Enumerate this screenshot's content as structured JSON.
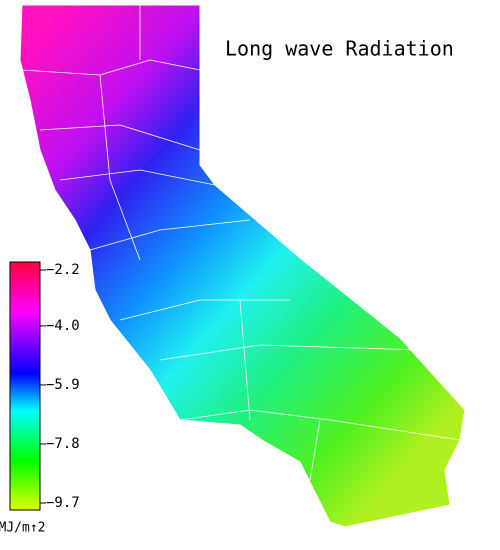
{
  "map": {
    "title": "Long wave Radiation",
    "colorbar": {
      "lim": [
        -9.7,
        -2.2
      ],
      "ticks": [
        {
          "value": -2.2,
          "label": "−2.2"
        },
        {
          "value": -4.0,
          "label": "−4.0"
        },
        {
          "value": -5.9,
          "label": "−5.9"
        },
        {
          "value": -7.8,
          "label": "−7.8"
        },
        {
          "value": -9.7,
          "label": "−9.7"
        }
      ],
      "unit": "MJ/m↑2"
    }
  }
}
